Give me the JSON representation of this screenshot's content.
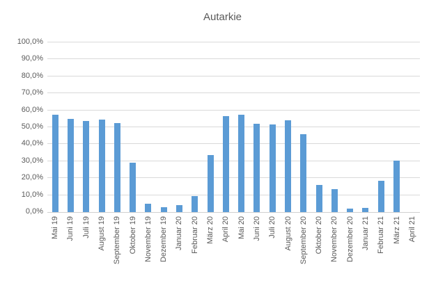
{
  "chart_data": {
    "type": "bar",
    "title": "Autarkie",
    "categories": [
      "Mai 19",
      "Juni 19",
      "Juli 19",
      "August 19",
      "September 19",
      "Oktober 19",
      "November 19",
      "Dezember 19",
      "Januar 20",
      "Februar 20",
      "März 20",
      "April 20",
      "Mai 20",
      "Juni 20",
      "Juli 20",
      "August 20",
      "September 20",
      "Oktober 20",
      "November 20",
      "Dezember 20",
      "Januar 21",
      "Februar 21",
      "März 21",
      "April 21"
    ],
    "values": [
      57.5,
      55,
      53.5,
      54.5,
      52.5,
      29,
      5,
      3,
      4,
      9.5,
      33.5,
      56.5,
      57.5,
      52,
      51.5,
      54,
      46,
      16,
      13.5,
      2,
      2.5,
      18.5,
      30.5,
      0
    ],
    "xlabel": "",
    "ylabel": "",
    "ylim": [
      0,
      100
    ],
    "y_tick_labels": [
      "0,0%",
      "10,0%",
      "20,0%",
      "30,0%",
      "40,0%",
      "50,0%",
      "60,0%",
      "70,0%",
      "80,0%",
      "90,0%",
      "100,0%"
    ],
    "y_tick_values": [
      0,
      10,
      20,
      30,
      40,
      50,
      60,
      70,
      80,
      90,
      100
    ],
    "grid": "horizontal-major",
    "legend": "none",
    "colors": {
      "bar": "#5B9BD5",
      "gridline": "#D9D9D9",
      "axis_line": "#D0D0D0",
      "text": "#595959",
      "background": "#FFFFFF"
    }
  }
}
